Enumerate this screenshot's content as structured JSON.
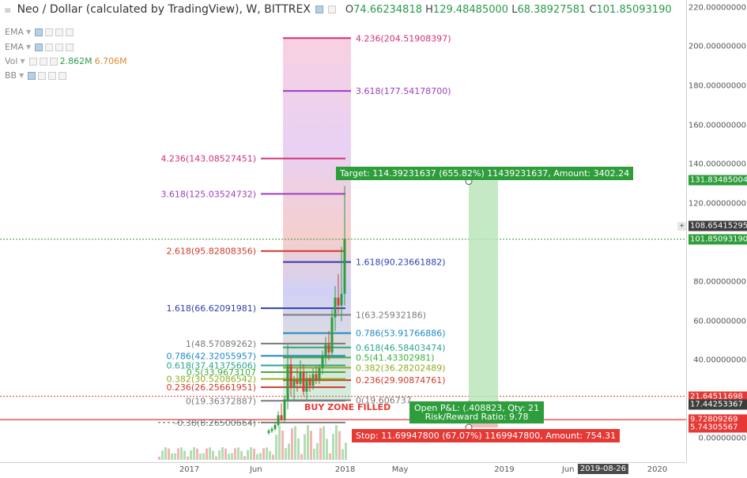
{
  "header": {
    "title": "Neo / Dollar (calculated by TradingView), W, BITTREX",
    "ohlc": [
      {
        "k": "O",
        "v": "74.66234818"
      },
      {
        "k": "H",
        "v": "129.48485000"
      },
      {
        "k": "L",
        "v": "68.38927581"
      },
      {
        "k": "C",
        "v": "101.85093190"
      }
    ]
  },
  "indicators": [
    {
      "name": "EMA"
    },
    {
      "name": "EMA"
    },
    {
      "name": "Vol",
      "value_a": "2.862M",
      "value_b": "6.706M"
    },
    {
      "name": "BB"
    }
  ],
  "price_axis": {
    "min": -12,
    "max": 224,
    "ticks": [
      "220.00000000",
      "200.00000000",
      "180.00000000",
      "160.00000000",
      "140.00000000",
      "120.00000000",
      "100.00000000",
      "80.00000000",
      "60.00000000",
      "40.00000000",
      "20.00000000",
      "0.00000000"
    ],
    "tick_values": [
      220,
      200,
      180,
      160,
      140,
      120,
      100,
      80,
      60,
      40,
      20,
      0
    ],
    "badges": [
      {
        "text": "131.83485004",
        "value": 131.83485004,
        "color": "#2e9e3c"
      },
      {
        "text": "108.65415295",
        "value": 108.65415295,
        "color": "#3d3d3d"
      },
      {
        "text": "101.85093190",
        "value": 101.8509319,
        "color": "#2e9e3c"
      },
      {
        "text": "21.64511698",
        "value": 21.64511698,
        "color": "#e53935"
      },
      {
        "text": "17.44253367",
        "value": 17.44253367,
        "color": "#3d3d3d"
      },
      {
        "text": "9.72809269",
        "value": 9.72809269,
        "color": "#e53935"
      },
      {
        "text": "5.74305567",
        "value": 5.74305567,
        "color": "#e53935"
      }
    ]
  },
  "time_axis": {
    "ticks": [
      {
        "label": "2017",
        "pos": 0.276
      },
      {
        "label": "Jun",
        "pos": 0.373
      },
      {
        "label": "2018",
        "pos": 0.503
      },
      {
        "label": "May",
        "pos": 0.583
      },
      {
        "label": "2019",
        "pos": 0.735
      },
      {
        "label": "Jun",
        "pos": 0.828
      },
      {
        "label": "2020",
        "pos": 0.958
      }
    ],
    "badge": {
      "label": "2019-08-26",
      "pos": 0.879
    }
  },
  "fib_upper": [
    {
      "label": "4.236(204.51908397)",
      "value": 204.51908397,
      "color": "#d0307a"
    },
    {
      "label": "3.618(177.54178700)",
      "value": 177.541787,
      "color": "#9a3fbf"
    },
    {
      "label": "1.618(90.23661882)",
      "value": 90.23661882,
      "color": "#2f3fae"
    },
    {
      "label": "1(63.25932186)",
      "value": 63.25932186,
      "color": "#7a7a7a"
    },
    {
      "label": "0.786(53.91766886)",
      "value": 53.91766886,
      "color": "#1e88c8"
    },
    {
      "label": "0.618(46.58403474)",
      "value": 46.58403474,
      "color": "#29a58c"
    },
    {
      "label": "0.5(41.43302981)",
      "value": 41.43302981,
      "color": "#3fae3a"
    },
    {
      "label": "0.382(36.28202489)",
      "value": 36.28202489,
      "color": "#8cae1f"
    },
    {
      "label": "0.236(29.90874761)",
      "value": 29.90874761,
      "color": "#d03a2a"
    },
    {
      "label": "0(19.606737",
      "value": 19.606737,
      "color": "#7a7a7a"
    }
  ],
  "fib_lower": [
    {
      "label": "4.236(143.08527451)",
      "value": 143.08527451,
      "color": "#d0307a"
    },
    {
      "label": "3.618(125.03524732)",
      "value": 125.03524732,
      "color": "#9a3fbf"
    },
    {
      "label": "2.618(95.82808356)",
      "value": 95.82808356,
      "color": "#d03a2a"
    },
    {
      "label": "1.618(66.62091981)",
      "value": 66.62091981,
      "color": "#2f3fae"
    },
    {
      "label": "1(48.57089262)",
      "value": 48.57089262,
      "color": "#7a7a7a"
    },
    {
      "label": "0.786(42.32055957)",
      "value": 42.32055957,
      "color": "#1e88c8"
    },
    {
      "label": "0.618(37.41375606)",
      "value": 37.41375606,
      "color": "#29a58c"
    },
    {
      "label": "0.5(33.9673107",
      "value": 33.9673107,
      "color": "#3fae3a"
    },
    {
      "label": "0.382(30.52086542)",
      "value": 30.52086542,
      "color": "#8cae1f"
    },
    {
      "label": "0.236(26.25661951)",
      "value": 26.25661951,
      "color": "#d03a2a"
    },
    {
      "label": "0(19.36372887)",
      "value": 19.36372887,
      "color": "#7a7a7a"
    },
    {
      "label": "-0.38(8.26500664)",
      "value": 8.26500664,
      "color": "#7a7a7a"
    }
  ],
  "position": {
    "target": "Target: 114.39231637 (655.82%) 11439231637, Amount: 3402.24",
    "open_pl": "Open P&L: (",
    "open_pl_value": ".408",
    "open_pl_qty": "823, Qty: 21",
    "risk_reward": "Risk/Reward Ratio: 9.78",
    "stop": "Stop: 11.69947800 (67.07%) 1169947800, Amount: 754.31",
    "target_value": 131.83485004,
    "entry_value": 17.44253367,
    "stop_value": 5.74305567
  },
  "annotation": {
    "buy_zone": "BUY ZONE FILLED"
  },
  "horizontal_lines": [
    {
      "value": 21.64511698,
      "color": "#e53935",
      "style": "dotted"
    },
    {
      "value": 9.72809269,
      "color": "#e53935",
      "style": "solid"
    },
    {
      "value": 101.8509319,
      "color": "#2e9e3c",
      "style": "dotted"
    }
  ],
  "colors": {
    "up": "#2e9e3c",
    "down": "#e53935",
    "target_fill": "#a8deA8",
    "stop_fill": "#f5a8a8"
  }
}
